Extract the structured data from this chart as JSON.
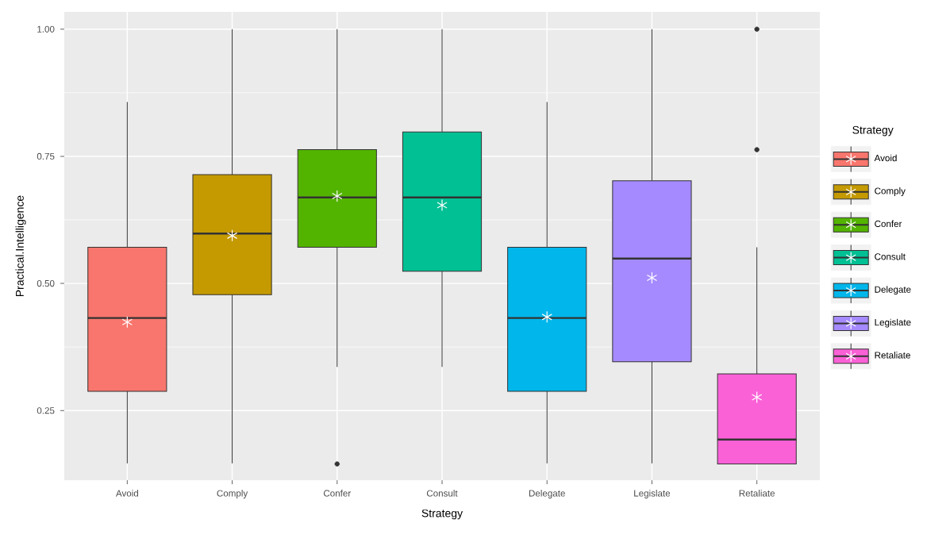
{
  "chart_data": {
    "type": "box",
    "categories": [
      "Avoid",
      "Comply",
      "Confer",
      "Consult",
      "Delegate",
      "Legislate",
      "Retaliate"
    ],
    "series": [
      {
        "name": "Avoid",
        "color": "#f8766d",
        "boxes": [
          {
            "low": 0.146,
            "q1": 0.288,
            "median": 0.432,
            "q3": 0.571,
            "high": 0.857,
            "mean": 0.424
          },
          null,
          null,
          null,
          null,
          null,
          null
        ]
      },
      {
        "name": "Comply",
        "color": "#c49a00",
        "boxes": [
          null,
          {
            "low": 0.146,
            "q1": 0.478,
            "median": 0.598,
            "q3": 0.714,
            "high": 1.0,
            "mean": 0.594
          },
          null,
          null,
          null,
          null,
          null
        ]
      },
      {
        "name": "Confer",
        "color": "#53b400",
        "boxes": [
          null,
          null,
          {
            "low": 0.336,
            "q1": 0.571,
            "median": 0.669,
            "q3": 0.763,
            "high": 1.0,
            "mean": 0.672,
            "outliers": [
              0.145
            ]
          },
          null,
          null,
          null,
          null
        ]
      },
      {
        "name": "Consult",
        "color": "#00c094",
        "boxes": [
          null,
          null,
          null,
          {
            "low": 0.336,
            "q1": 0.524,
            "median": 0.669,
            "q3": 0.798,
            "high": 1.0,
            "mean": 0.654
          },
          null,
          null,
          null
        ]
      },
      {
        "name": "Delegate",
        "color": "#00b6eb",
        "boxes": [
          null,
          null,
          null,
          null,
          {
            "low": 0.146,
            "q1": 0.288,
            "median": 0.432,
            "q3": 0.571,
            "high": 0.857,
            "mean": 0.434
          },
          null,
          null
        ]
      },
      {
        "name": "Legislate",
        "color": "#a58aff",
        "boxes": [
          null,
          null,
          null,
          null,
          null,
          {
            "low": 0.146,
            "q1": 0.346,
            "median": 0.549,
            "q3": 0.702,
            "high": 1.0,
            "mean": 0.511
          },
          null
        ]
      },
      {
        "name": "Retaliate",
        "color": "#fb61d7",
        "boxes": [
          null,
          null,
          null,
          null,
          null,
          null,
          {
            "low": 0.145,
            "q1": 0.145,
            "median": 0.193,
            "q3": 0.322,
            "high": 0.571,
            "mean": 0.276,
            "outliers": [
              1.0,
              0.763
            ]
          }
        ]
      }
    ],
    "xlabel": "Strategy",
    "ylabel": "Practical.Intelligence",
    "legend_title": "Strategy",
    "legend": "right",
    "ylim": [
      0.113,
      1.034
    ],
    "yticks": [
      {
        "value": 0.25,
        "label": "0.25"
      },
      {
        "value": 0.5,
        "label": "0.50"
      },
      {
        "value": 0.75,
        "label": "0.75"
      },
      {
        "value": 1.0,
        "label": "1.00"
      }
    ],
    "grid": true
  }
}
